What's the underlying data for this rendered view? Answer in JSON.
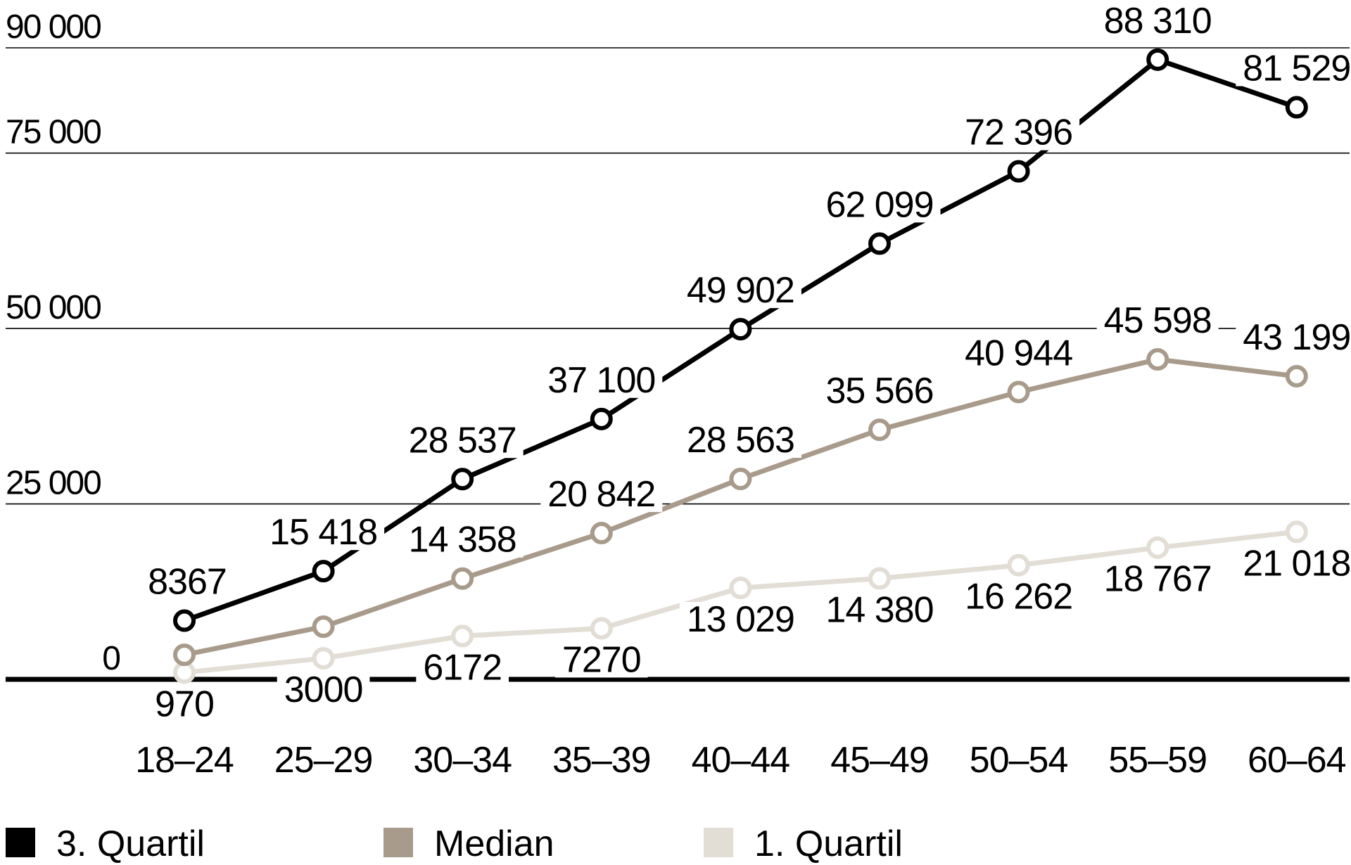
{
  "chart_data": {
    "type": "line",
    "title": "",
    "xlabel": "",
    "ylabel": "",
    "categories": [
      "18–24",
      "25–29",
      "30–34",
      "35–39",
      "40–44",
      "45–49",
      "50–54",
      "55–59",
      "60–64"
    ],
    "ylim": [
      0,
      90000
    ],
    "yticks": [
      0,
      25000,
      50000,
      75000,
      90000
    ],
    "ytick_labels": [
      "0",
      "25 000",
      "50 000",
      "75 000",
      "90 000"
    ],
    "grid": true,
    "legend_position": "bottom",
    "series": [
      {
        "name": "3. Quartil",
        "color": "#000000",
        "values": [
          8367,
          15418,
          28537,
          37100,
          49902,
          62099,
          72396,
          88310,
          81529
        ],
        "labels": [
          "8367",
          "15 418",
          "28 537",
          "37 100",
          "49 902",
          "62 099",
          "72 396",
          "88 310",
          "81 529"
        ]
      },
      {
        "name": "Median",
        "color": "#a89b8c",
        "values": [
          3500,
          7500,
          14358,
          20842,
          28563,
          35566,
          40944,
          45598,
          43199
        ],
        "labels": [
          "",
          "",
          "14 358",
          "20 842",
          "28 563",
          "35 566",
          "40 944",
          "45 598",
          "43 199"
        ]
      },
      {
        "name": "1. Quartil",
        "color": "#e2ddd5",
        "values": [
          970,
          3000,
          6172,
          7270,
          13029,
          14380,
          16262,
          18767,
          21018
        ],
        "labels": [
          "970",
          "3000",
          "6172",
          "7270",
          "13 029",
          "14 380",
          "16 262",
          "18 767",
          "21 018"
        ]
      }
    ]
  }
}
